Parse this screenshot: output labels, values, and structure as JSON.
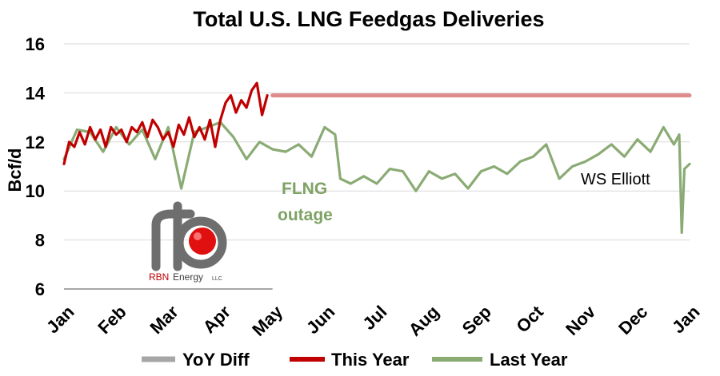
{
  "chart_data": {
    "type": "line",
    "title": "Total U.S. LNG Feedgas Deliveries",
    "ylabel": "Bcf/d",
    "xlabel": "",
    "ylim": [
      6,
      16
    ],
    "yticks": [
      "6",
      "8",
      "10",
      "12",
      "14",
      "16"
    ],
    "xticks": [
      "Jan",
      "Feb",
      "Mar",
      "Apr",
      "May",
      "Jun",
      "Jul",
      "Aug",
      "Sep",
      "Oct",
      "Nov",
      "Dec",
      "Jan"
    ],
    "legend": {
      "placement": "bottom",
      "entries": [
        "YoY Diff",
        "This Year",
        "Last Year"
      ]
    },
    "colors": {
      "this_year": "#c00000",
      "this_year_forecast": "#e08c8c",
      "last_year": "#8aab74",
      "yoy_diff": "#a6a6a6"
    },
    "annotations": [
      {
        "text": "FLNG",
        "color": "#7ea264"
      },
      {
        "text": "outage",
        "color": "#7ea264"
      },
      {
        "text": "WS Elliott",
        "color": "#000000"
      }
    ],
    "series": [
      {
        "name": "This Year",
        "x_month": [
          0.0,
          0.1,
          0.2,
          0.3,
          0.4,
          0.5,
          0.6,
          0.7,
          0.8,
          0.9,
          1.0,
          1.1,
          1.2,
          1.3,
          1.4,
          1.5,
          1.6,
          1.7,
          1.8,
          1.9,
          2.0,
          2.1,
          2.2,
          2.3,
          2.4,
          2.5,
          2.6,
          2.7,
          2.8,
          2.9,
          3.0,
          3.1,
          3.2,
          3.3,
          3.4,
          3.5,
          3.6,
          3.7,
          3.8,
          3.9
        ],
        "values": [
          11.1,
          12.0,
          11.8,
          12.4,
          11.9,
          12.6,
          12.1,
          12.5,
          11.8,
          12.6,
          12.3,
          12.5,
          12.0,
          12.6,
          12.4,
          12.8,
          12.2,
          12.9,
          12.6,
          12.1,
          12.4,
          11.8,
          12.7,
          12.3,
          13.0,
          12.2,
          12.6,
          12.1,
          12.9,
          11.8,
          12.9,
          13.6,
          13.9,
          13.2,
          13.7,
          13.4,
          14.1,
          14.4,
          13.1,
          13.9
        ]
      },
      {
        "name": "This Year (projection)",
        "x_month": [
          4.0,
          12.0
        ],
        "values": [
          13.9,
          13.9
        ]
      },
      {
        "name": "Last Year",
        "x_month": [
          0.0,
          0.25,
          0.5,
          0.75,
          1.0,
          1.25,
          1.5,
          1.75,
          2.0,
          2.25,
          2.5,
          2.75,
          3.0,
          3.25,
          3.5,
          3.75,
          4.0,
          4.25,
          4.5,
          4.75,
          5.0,
          5.2,
          5.3,
          5.5,
          5.75,
          6.0,
          6.25,
          6.5,
          6.75,
          7.0,
          7.25,
          7.5,
          7.75,
          8.0,
          8.25,
          8.5,
          8.75,
          9.0,
          9.25,
          9.5,
          9.75,
          10.0,
          10.25,
          10.5,
          10.75,
          11.0,
          11.25,
          11.5,
          11.7,
          11.8,
          11.85,
          11.9,
          12.0
        ],
        "values": [
          11.3,
          12.5,
          12.4,
          11.6,
          12.6,
          11.9,
          12.5,
          11.3,
          12.6,
          10.1,
          12.4,
          12.6,
          12.8,
          12.2,
          11.3,
          12.0,
          11.7,
          11.6,
          11.9,
          11.4,
          12.6,
          12.3,
          10.5,
          10.3,
          10.6,
          10.3,
          10.9,
          10.8,
          10.0,
          10.8,
          10.5,
          10.7,
          10.1,
          10.8,
          11.0,
          10.7,
          11.2,
          11.4,
          11.9,
          10.5,
          11.0,
          11.2,
          11.5,
          11.9,
          11.4,
          12.1,
          11.6,
          12.6,
          11.9,
          12.3,
          8.3,
          10.9,
          11.1
        ]
      }
    ]
  },
  "logo": {
    "name": "RBN",
    "brand": "Energy",
    "suffix": "LLC"
  }
}
